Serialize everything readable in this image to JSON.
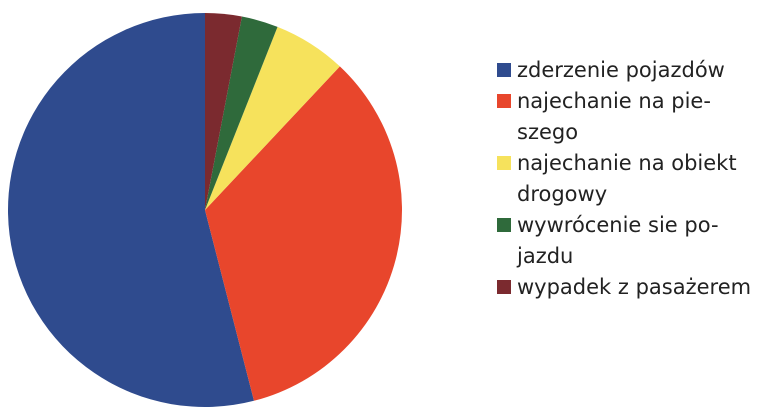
{
  "chart_data": {
    "type": "pie",
    "categories": [
      "zderzenie pojazdów",
      "najechanie na pie-\nszego",
      "najechanie na obiekt\ndrogowy",
      "wywrócenie sie po-\njazdu",
      "wypadek z pasażerem"
    ],
    "values": [
      54,
      34,
      6,
      3,
      3
    ],
    "colors": [
      "#2f4b8e",
      "#e8462c",
      "#f6e25c",
      "#2f6a3b",
      "#7b2a2f"
    ]
  }
}
